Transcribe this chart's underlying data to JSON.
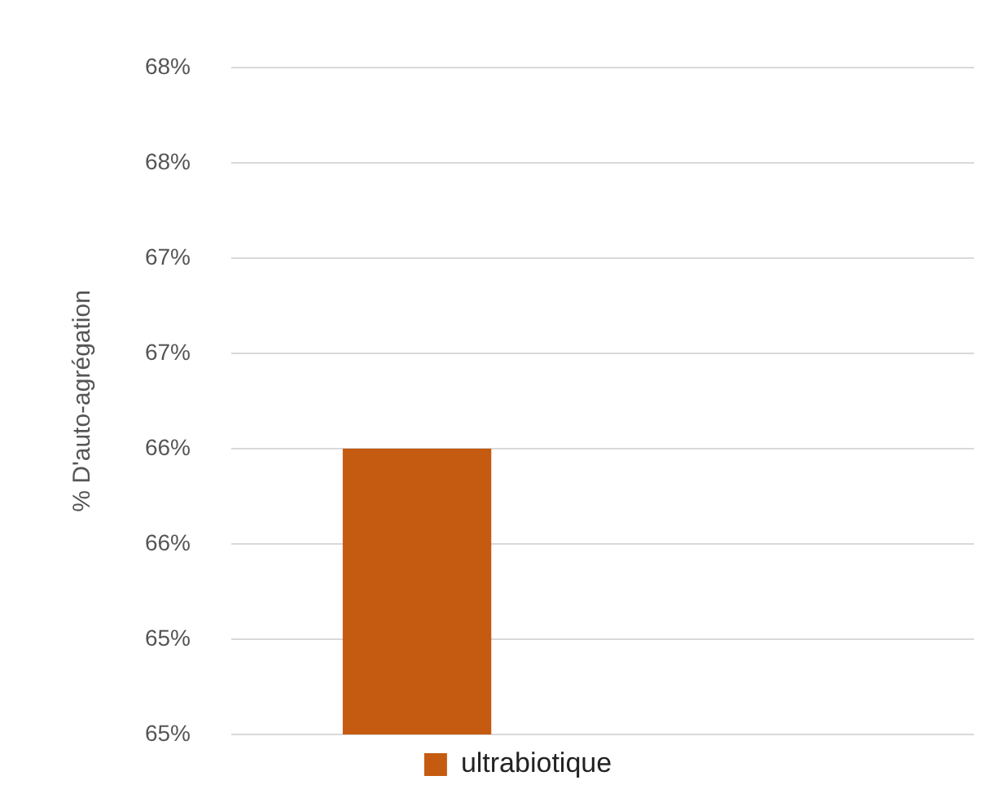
{
  "chart_data": {
    "type": "bar",
    "ylabel": "% D'auto-agrégation",
    "categories": [
      null,
      null
    ],
    "series": [
      {
        "name": "ultrabiotique",
        "color": "#c55a11",
        "values": [
          66.5,
          null
        ]
      }
    ],
    "ylim": [
      65,
      68.5
    ],
    "yticks": [
      {
        "value": 65,
        "label": "65%"
      },
      {
        "value": 65.5,
        "label": "65%"
      },
      {
        "value": 66,
        "label": "66%"
      },
      {
        "value": 66.5,
        "label": "66%"
      },
      {
        "value": 67,
        "label": "67%"
      },
      {
        "value": 67.5,
        "label": "67%"
      },
      {
        "value": 68,
        "label": "68%"
      },
      {
        "value": 68.5,
        "label": "68%"
      }
    ],
    "grid": "y",
    "legend": "bottom"
  }
}
